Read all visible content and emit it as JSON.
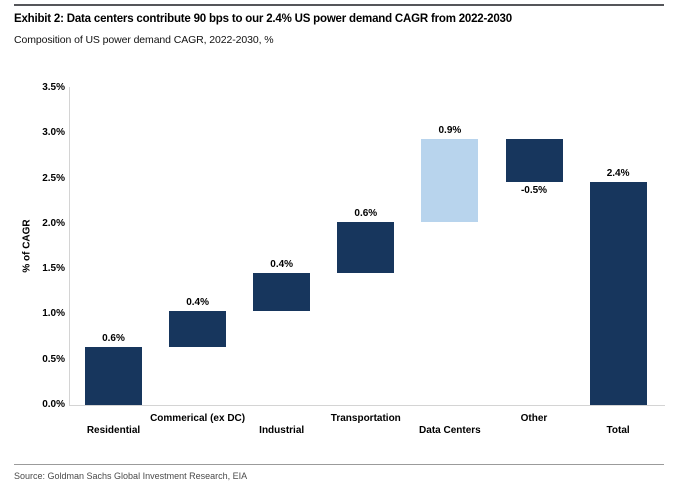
{
  "header": {
    "title": "Exhibit 2: Data centers contribute 90 bps to our 2.4% US power demand CAGR from 2022-2030",
    "subtitle": "Composition of US power demand CAGR, 2022-2030, %"
  },
  "footer": {
    "source": "Source: Goldman Sachs Global Investment Research, EIA"
  },
  "chart_data": {
    "type": "bar",
    "subtype": "waterfall",
    "title": "Composition of US power demand CAGR, 2022-2030, %",
    "xlabel": "",
    "ylabel": "% of CAGR",
    "ylim": [
      0,
      3.5
    ],
    "ytick_step": 0.5,
    "ytick_labels": [
      "0.0%",
      "0.5%",
      "1.0%",
      "1.5%",
      "2.0%",
      "2.5%",
      "3.0%",
      "3.5%"
    ],
    "grid": false,
    "legend": false,
    "categories": [
      "Residential",
      "Commerical (ex DC)",
      "Industrial",
      "Transportation",
      "Data Centers",
      "Other",
      "Total"
    ],
    "values": [
      0.6,
      0.4,
      0.4,
      0.6,
      0.9,
      -0.5,
      2.4
    ],
    "value_labels": [
      "0.6%",
      "0.4%",
      "0.4%",
      "0.6%",
      "0.9%",
      "-0.5%",
      "2.4%"
    ],
    "bar_spans": [
      [
        0,
        0.645
      ],
      [
        0.645,
        1.035
      ],
      [
        1.035,
        1.455
      ],
      [
        1.455,
        2.02
      ],
      [
        2.02,
        2.935
      ],
      [
        2.465,
        2.935
      ],
      [
        0,
        2.465
      ]
    ],
    "value_label_side": [
      "above",
      "above",
      "above",
      "above",
      "above",
      "below",
      "above"
    ],
    "bar_colors": [
      "#17365d",
      "#17365d",
      "#17365d",
      "#17365d",
      "#b8d4ed",
      "#17365d",
      "#17365d"
    ],
    "colors": {
      "navy": "#17365d",
      "light_blue": "#b8d4ed",
      "axis_line": "#d4d4d4",
      "rule": "#55565a"
    }
  }
}
